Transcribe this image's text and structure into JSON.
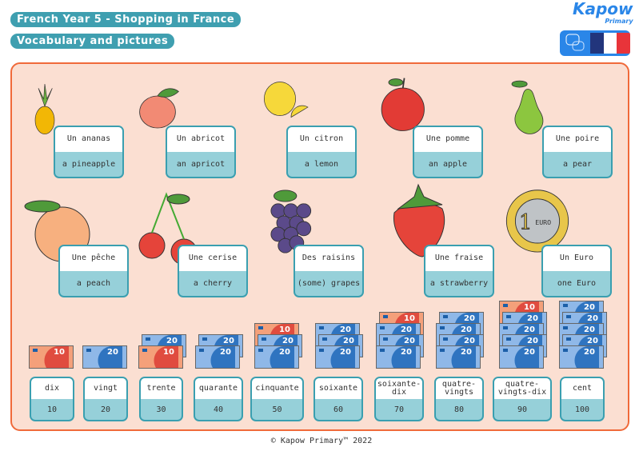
{
  "header": {
    "title": "French Year 5 - Shopping in France",
    "subtitle": "Vocabulary and pictures"
  },
  "logo": {
    "brand": "Kapow",
    "sub": "Primary"
  },
  "language_badge": {
    "icon": "speech-bubbles-icon",
    "flag_colors": [
      "#22357c",
      "#ffffff",
      "#e8343a"
    ]
  },
  "colors": {
    "accent": "#3f9fb0",
    "panel_bg": "#fbdfd2",
    "panel_border": "#f06a3a",
    "card_bottom": "#96d0d9"
  },
  "vocab": [
    {
      "french": "Un ananas",
      "english": "a pineapple",
      "picture": "pineapple"
    },
    {
      "french": "Un abricot",
      "english": "an apricot",
      "picture": "apricot"
    },
    {
      "french": "Un citron",
      "english": "a lemon",
      "picture": "lemon"
    },
    {
      "french": "Une pomme",
      "english": "an apple",
      "picture": "apple"
    },
    {
      "french": "Une poire",
      "english": "a pear",
      "picture": "pear"
    },
    {
      "french": "Une pêche",
      "english": "a peach",
      "picture": "peach"
    },
    {
      "french": "Une cerise",
      "english": "a cherry",
      "picture": "cherry"
    },
    {
      "french": "Des raisins",
      "english": "(some) grapes",
      "picture": "grapes"
    },
    {
      "french": "Une fraise",
      "english": "a strawberry",
      "picture": "strawberry"
    },
    {
      "french": "Un Euro",
      "english": "one Euro",
      "picture": "euro-coin",
      "coin_text": "EURO",
      "coin_value": "1"
    }
  ],
  "numbers": [
    {
      "french": "dix",
      "value": "10",
      "notes": [
        "10"
      ]
    },
    {
      "french": "vingt",
      "value": "20",
      "notes": [
        "20"
      ]
    },
    {
      "french": "trente",
      "value": "30",
      "notes": [
        "20",
        "10"
      ]
    },
    {
      "french": "quarante",
      "value": "40",
      "notes": [
        "20",
        "20"
      ]
    },
    {
      "french": "cinquante",
      "value": "50",
      "notes": [
        "10",
        "20",
        "20"
      ]
    },
    {
      "french": "soixante",
      "value": "60",
      "notes": [
        "20",
        "20",
        "20"
      ]
    },
    {
      "french": "soixante-dix",
      "value": "70",
      "notes": [
        "10",
        "20",
        "20",
        "20"
      ]
    },
    {
      "french": "quatre-vingts",
      "value": "80",
      "notes": [
        "20",
        "20",
        "20",
        "20"
      ]
    },
    {
      "french": "quatre-vingts-dix",
      "value": "90",
      "notes": [
        "10",
        "20",
        "20",
        "20",
        "20"
      ]
    },
    {
      "french": "cent",
      "value": "100",
      "notes": [
        "20",
        "20",
        "20",
        "20",
        "20"
      ]
    }
  ],
  "footer": "© Kapow Primary™ 2022"
}
